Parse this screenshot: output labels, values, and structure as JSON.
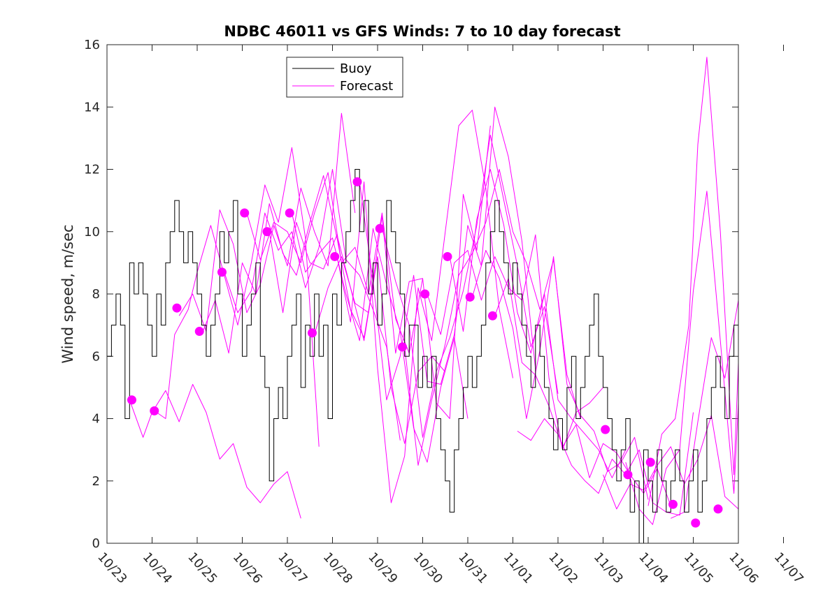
{
  "chart_data": {
    "type": "line",
    "title": "NDBC 46011 vs GFS Winds: 7 to 10 day forecast",
    "xlabel": "",
    "ylabel": "Wind speed, m/sec",
    "ylim": [
      0,
      16
    ],
    "yticks": [
      "0",
      "2",
      "4",
      "6",
      "8",
      "10",
      "12",
      "14",
      "16"
    ],
    "xlim": [
      0,
      14
    ],
    "xticks": [
      "10/23",
      "10/24",
      "10/25",
      "10/26",
      "10/27",
      "10/28",
      "10/29",
      "10/30",
      "10/31",
      "11/01",
      "11/02",
      "11/03",
      "11/04",
      "11/05",
      "11/06",
      "11/07"
    ],
    "legend": {
      "position": "top-center",
      "entries": [
        "Buoy",
        "Forecast"
      ]
    },
    "colors": {
      "buoy": "#000000",
      "forecast": "#ff00ff",
      "axis": "#262626"
    },
    "buoy": {
      "name": "Buoy",
      "x": [
        0.0,
        0.1,
        0.2,
        0.3,
        0.4,
        0.5,
        0.6,
        0.7,
        0.8,
        0.9,
        1.0,
        1.1,
        1.2,
        1.3,
        1.4,
        1.5,
        1.6,
        1.7,
        1.8,
        1.9,
        2.0,
        2.1,
        2.2,
        2.3,
        2.4,
        2.5,
        2.6,
        2.7,
        2.8,
        2.9,
        3.0,
        3.1,
        3.2,
        3.3,
        3.4,
        3.5,
        3.6,
        3.7,
        3.8,
        3.9,
        4.0,
        4.1,
        4.2,
        4.3,
        4.4,
        4.5,
        4.6,
        4.7,
        4.8,
        4.9,
        5.0,
        5.1,
        5.2,
        5.3,
        5.4,
        5.5,
        5.6,
        5.7,
        5.8,
        5.9,
        6.0,
        6.1,
        6.2,
        6.3,
        6.4,
        6.5,
        6.6,
        6.7,
        6.8,
        6.9,
        7.0,
        7.1,
        7.2,
        7.3,
        7.4,
        7.5,
        7.6,
        7.7,
        7.8,
        7.9,
        8.0,
        8.1,
        8.2,
        8.3,
        8.4,
        8.5,
        8.6,
        8.7,
        8.8,
        8.9,
        9.0,
        9.1,
        9.2,
        9.3,
        9.4,
        9.5,
        9.6,
        9.7,
        9.8,
        9.9,
        10.0,
        10.1,
        10.2,
        10.3,
        10.4,
        10.5,
        10.6,
        10.7,
        10.8,
        10.9,
        11.0,
        11.1,
        11.2,
        11.3,
        11.4,
        11.5,
        11.6,
        11.7,
        11.8,
        11.9,
        12.0,
        12.1,
        12.2,
        12.3,
        12.4,
        12.5,
        12.6,
        12.7,
        12.8,
        12.9,
        13.0,
        13.1,
        13.2,
        13.3,
        13.4,
        13.5,
        13.6,
        13.7,
        13.8,
        13.9
      ],
      "y": [
        6,
        7,
        8,
        7,
        4,
        9,
        8,
        9,
        8,
        7,
        6,
        8,
        7,
        9,
        10,
        11,
        10,
        9,
        10,
        9,
        8,
        7,
        6,
        7,
        8,
        10,
        9,
        10,
        11,
        8,
        6,
        7,
        8,
        9,
        6,
        5,
        2,
        4,
        5,
        4,
        6,
        7,
        8,
        5,
        7,
        6,
        8,
        6,
        7,
        4,
        8,
        7,
        9,
        10,
        11,
        12,
        10,
        11,
        8,
        9,
        7,
        8,
        11,
        10,
        9,
        8,
        6,
        7,
        7,
        5,
        6,
        5,
        6,
        4,
        3,
        2,
        1,
        3,
        4,
        5,
        6,
        5,
        6,
        7,
        9,
        10,
        11,
        10,
        9,
        8,
        9,
        8,
        7,
        6,
        5,
        7,
        6,
        5,
        4,
        3,
        4,
        3,
        5,
        6,
        4,
        5,
        6,
        7,
        8,
        6,
        5,
        4,
        3,
        2,
        3,
        4,
        1,
        2,
        0,
        3,
        2,
        1,
        3,
        2,
        1,
        2,
        3,
        2,
        1,
        2,
        3,
        1,
        2,
        4,
        5,
        6,
        5,
        4,
        6,
        7
      ]
    },
    "forecast_lines": [
      {
        "name": "Forecast",
        "x": [
          0.5,
          0.8,
          1.0,
          1.3,
          1.6,
          1.9,
          2.2,
          2.5,
          2.8,
          3.1,
          3.4,
          3.7,
          4.0,
          4.3
        ],
        "y": [
          4.6,
          3.4,
          4.2,
          4.9,
          3.9,
          5.1,
          4.2,
          2.7,
          3.2,
          1.8,
          1.3,
          1.9,
          2.3,
          0.8
        ]
      },
      {
        "name": "Forecast",
        "x": [
          1.0,
          1.3,
          1.5,
          1.8,
          2.0,
          2.3,
          2.6,
          2.9,
          3.2,
          3.5,
          3.8,
          4.1,
          4.4,
          4.7
        ],
        "y": [
          4.3,
          4.0,
          6.7,
          7.5,
          8.7,
          10.2,
          8.6,
          7.0,
          9.0,
          11.5,
          10.3,
          12.7,
          9.8,
          3.1
        ]
      },
      {
        "name": "Forecast",
        "x": [
          1.6,
          1.9,
          2.2,
          2.5,
          2.8,
          3.1,
          3.4,
          3.7,
          4.0,
          4.3,
          4.6,
          4.9,
          5.2,
          5.5
        ],
        "y": [
          7.3,
          8.0,
          6.8,
          10.7,
          9.6,
          7.4,
          8.3,
          10.2,
          8.9,
          11.4,
          10.0,
          8.9,
          13.8,
          10.6
        ]
      },
      {
        "name": "Forecast",
        "x": [
          2.1,
          2.4,
          2.7,
          3.0,
          3.3,
          3.6,
          3.9,
          4.2,
          4.5,
          4.8,
          5.1,
          5.4,
          5.7,
          6.0
        ],
        "y": [
          6.7,
          7.8,
          6.1,
          9.0,
          8.0,
          10.9,
          9.3,
          8.6,
          10.3,
          11.8,
          9.8,
          7.5,
          6.6,
          9.2
        ]
      },
      {
        "name": "Forecast",
        "x": [
          2.6,
          2.9,
          3.2,
          3.5,
          3.8,
          4.1,
          4.4,
          4.7,
          5.0,
          5.3,
          5.6,
          5.9,
          6.2,
          6.5
        ],
        "y": [
          8.7,
          7.4,
          8.1,
          10.6,
          9.4,
          10.0,
          8.2,
          9.5,
          12.0,
          9.1,
          8.6,
          7.5,
          6.3,
          3.3
        ]
      },
      {
        "name": "Forecast",
        "x": [
          3.1,
          3.4,
          3.7,
          4.0,
          4.3,
          4.6,
          4.9,
          5.2,
          5.5,
          5.8,
          6.1,
          6.4,
          6.7,
          7.0
        ],
        "y": [
          10.6,
          9.1,
          10.3,
          10.0,
          9.0,
          10.6,
          11.9,
          9.0,
          9.5,
          8.0,
          10.6,
          7.2,
          6.1,
          8.5
        ]
      },
      {
        "name": "Forecast",
        "x": [
          3.6,
          3.9,
          4.2,
          4.5,
          4.8,
          5.1,
          5.4,
          5.7,
          6.0,
          6.3,
          6.6,
          6.9,
          7.2,
          7.5
        ],
        "y": [
          10.0,
          7.4,
          10.3,
          9.0,
          8.8,
          9.9,
          8.2,
          6.5,
          9.2,
          5.0,
          3.2,
          5.5,
          6.0,
          5.5
        ]
      },
      {
        "name": "Forecast",
        "x": [
          4.1,
          4.4,
          4.7,
          5.0,
          5.3,
          5.6,
          5.9,
          6.2,
          6.5,
          6.8,
          7.1,
          7.4,
          7.7,
          8.0
        ],
        "y": [
          10.6,
          8.7,
          9.3,
          9.8,
          8.0,
          6.5,
          10.1,
          8.3,
          6.8,
          3.7,
          2.6,
          5.0,
          6.6,
          4.0
        ]
      },
      {
        "name": "Forecast",
        "x": [
          4.6,
          4.9,
          5.2,
          5.5,
          5.8,
          6.1,
          6.4,
          6.7,
          7.0,
          7.3,
          7.6,
          7.9,
          8.2,
          8.5
        ],
        "y": [
          6.7,
          8.2,
          9.2,
          7.7,
          7.4,
          10.5,
          6.1,
          8.4,
          8.5,
          4.5,
          4.0,
          11.2,
          9.4,
          13.4
        ]
      },
      {
        "name": "Forecast",
        "x": [
          5.1,
          5.4,
          5.7,
          6.0,
          6.3,
          6.6,
          6.9,
          7.2,
          7.5,
          7.8,
          8.1,
          8.4,
          8.7,
          9.0
        ],
        "y": [
          9.2,
          7.1,
          11.6,
          5.6,
          1.3,
          2.8,
          8.2,
          6.5,
          10.0,
          13.4,
          13.9,
          11.4,
          7.5,
          5.3
        ]
      },
      {
        "name": "Forecast",
        "x": [
          5.6,
          5.9,
          6.2,
          6.5,
          6.8,
          7.1,
          7.4,
          7.7,
          8.0,
          8.3,
          8.6,
          8.9,
          9.2,
          9.5
        ],
        "y": [
          11.6,
          8.4,
          4.6,
          6.0,
          8.6,
          5.2,
          5.1,
          6.7,
          10.2,
          8.9,
          14.0,
          12.4,
          9.7,
          5.6
        ]
      },
      {
        "name": "Forecast",
        "x": [
          6.1,
          6.4,
          6.7,
          7.0,
          7.3,
          7.6,
          7.9,
          8.2,
          8.5,
          8.8,
          9.1,
          9.4,
          9.7,
          10.0
        ],
        "y": [
          10.1,
          8.4,
          7.0,
          3.4,
          5.5,
          6.6,
          8.1,
          10.2,
          13.1,
          11.0,
          8.9,
          6.3,
          7.6,
          4.8
        ]
      },
      {
        "name": "Forecast",
        "x": [
          6.6,
          6.9,
          7.2,
          7.5,
          7.8,
          8.1,
          8.4,
          8.7,
          9.0,
          9.3,
          9.6,
          9.9,
          10.2,
          10.5
        ],
        "y": [
          6.3,
          2.5,
          4.6,
          6.4,
          8.6,
          9.3,
          10.3,
          12.0,
          10.0,
          9.0,
          7.5,
          9.1,
          5.4,
          4.0
        ]
      },
      {
        "name": "Forecast",
        "x": [
          7.1,
          7.4,
          7.7,
          8.0,
          8.3,
          8.6,
          8.9,
          9.2,
          9.5,
          9.8,
          10.1,
          10.4,
          10.7,
          11.0
        ],
        "y": [
          8.0,
          6.7,
          9.0,
          9.4,
          7.8,
          9.2,
          8.2,
          7.8,
          9.9,
          5.3,
          3.0,
          4.2,
          4.5,
          5.0
        ]
      },
      {
        "name": "Forecast",
        "x": [
          7.6,
          7.9,
          8.2,
          8.5,
          8.8,
          9.1,
          9.4,
          9.7,
          10.0,
          10.3,
          10.6,
          10.9,
          11.2,
          11.5
        ],
        "y": [
          9.2,
          6.8,
          10.4,
          12.0,
          10.2,
          7.4,
          6.1,
          8.0,
          4.6,
          4.0,
          3.5,
          3.0,
          2.1,
          3.0
        ]
      },
      {
        "name": "Forecast",
        "x": [
          8.1,
          8.4,
          8.7,
          9.0,
          9.3,
          9.6,
          9.9,
          10.2,
          10.5,
          10.8,
          11.1,
          11.4,
          11.7,
          12.0
        ],
        "y": [
          7.9,
          9.4,
          8.5,
          6.9,
          4.0,
          6.2,
          9.2,
          5.1,
          4.1,
          3.6,
          2.3,
          2.6,
          3.4,
          1.4
        ]
      },
      {
        "name": "Forecast",
        "x": [
          8.6,
          8.9,
          9.2,
          9.5,
          9.8,
          10.1,
          10.4,
          10.7,
          11.0,
          11.3,
          11.6,
          11.9,
          12.2,
          12.5
        ],
        "y": [
          7.3,
          8.5,
          5.8,
          5.4,
          4.4,
          3.1,
          3.8,
          2.1,
          3.2,
          2.9,
          2.2,
          1.6,
          2.4,
          1.2
        ]
      },
      {
        "name": "Forecast",
        "x": [
          9.1,
          9.4,
          9.7,
          10.0,
          10.3,
          10.6,
          10.9,
          11.2,
          11.5,
          11.8,
          12.1,
          12.4,
          12.7,
          13.0
        ],
        "y": [
          3.6,
          3.3,
          4.0,
          3.5,
          2.5,
          2.0,
          1.6,
          2.7,
          2.2,
          3.0,
          1.3,
          1.0,
          0.9,
          4.2
        ]
      },
      {
        "name": "Forecast",
        "x": [
          11.0,
          11.3,
          11.6,
          11.9,
          12.2,
          12.5,
          12.8,
          13.1,
          13.4,
          13.7,
          14.0
        ],
        "y": [
          2.2,
          1.1,
          1.9,
          1.7,
          2.5,
          3.1,
          1.9,
          2.7,
          4.1,
          1.5,
          1.1
        ]
      },
      {
        "name": "Forecast",
        "x": [
          11.5,
          11.8,
          12.1,
          12.4,
          12.7,
          13.0,
          13.3,
          13.6,
          13.9,
          14.0
        ],
        "y": [
          2.6,
          1.1,
          0.6,
          2.4,
          3.0,
          8.1,
          11.3,
          6.5,
          1.6,
          4.5
        ]
      },
      {
        "name": "Forecast",
        "x": [
          12.0,
          12.3,
          12.6,
          12.9,
          13.1,
          13.3,
          13.6,
          13.9,
          14.0
        ],
        "y": [
          1.2,
          3.5,
          4.0,
          7.0,
          12.8,
          15.6,
          10.0,
          2.2,
          5.8
        ]
      },
      {
        "name": "Forecast",
        "x": [
          12.5,
          12.8,
          13.1,
          13.4,
          13.7,
          14.0
        ],
        "y": [
          0.8,
          1.0,
          3.9,
          6.6,
          5.3,
          7.8
        ]
      }
    ],
    "forecast_points": {
      "name": "Forecast",
      "x": [
        0.55,
        1.05,
        1.55,
        2.05,
        2.55,
        3.05,
        3.55,
        4.05,
        4.55,
        5.05,
        5.55,
        6.05,
        6.55,
        7.05,
        7.55,
        8.05,
        8.55,
        11.05,
        11.55,
        12.05,
        12.55,
        13.05,
        13.55
      ],
      "y": [
        4.6,
        4.25,
        7.55,
        6.8,
        8.7,
        10.6,
        10.0,
        10.6,
        6.75,
        9.2,
        11.6,
        10.1,
        6.3,
        8.0,
        9.2,
        7.9,
        7.3,
        3.65,
        2.2,
        2.6,
        1.25,
        0.65,
        1.1
      ]
    }
  }
}
